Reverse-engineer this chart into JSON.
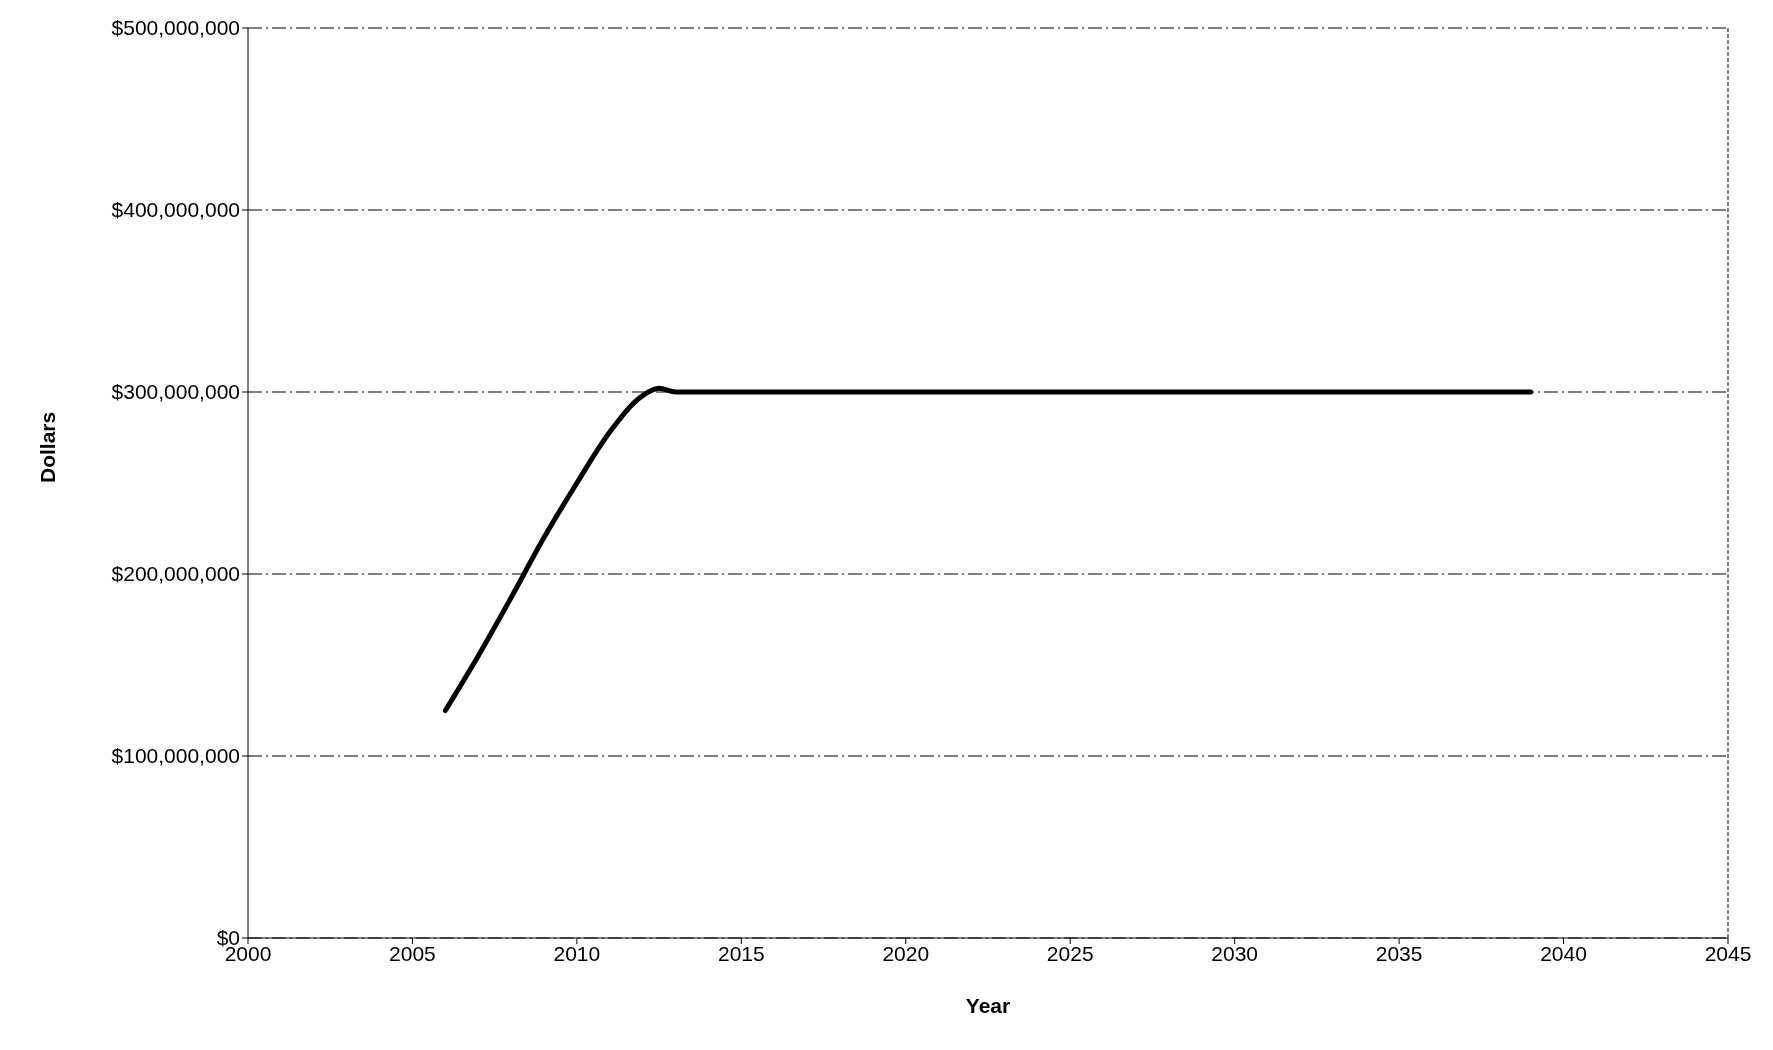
{
  "chart_data": {
    "type": "line",
    "xlabel": "Year",
    "ylabel": "Dollars",
    "x": [
      2006,
      2007,
      2008,
      2009,
      2010,
      2011,
      2012,
      2012.5,
      2013,
      2020,
      2030,
      2039
    ],
    "series": [
      {
        "color": "#000000",
        "values": [
          125000000,
          155000000,
          187000000,
          220000000,
          250000000,
          278000000,
          298000000,
          302000000,
          300000000,
          300000000,
          300000000,
          300000000
        ]
      }
    ],
    "xlim": [
      2000,
      2045
    ],
    "xticks": [
      2000,
      2005,
      2010,
      2015,
      2020,
      2025,
      2030,
      2035,
      2040,
      2045
    ],
    "ylim": [
      0,
      500000000
    ],
    "yticks": [
      {
        "value": 0,
        "label": "$0"
      },
      {
        "value": 100000000,
        "label": "$100,000,000"
      },
      {
        "value": 200000000,
        "label": "$200,000,000"
      },
      {
        "value": 300000000,
        "label": "$300,000,000"
      },
      {
        "value": 400000000,
        "label": "$400,000,000"
      },
      {
        "value": 500000000,
        "label": "$500,000,000"
      }
    ],
    "grid": "y",
    "legend": false,
    "marker": "none",
    "line_style": "solid"
  }
}
